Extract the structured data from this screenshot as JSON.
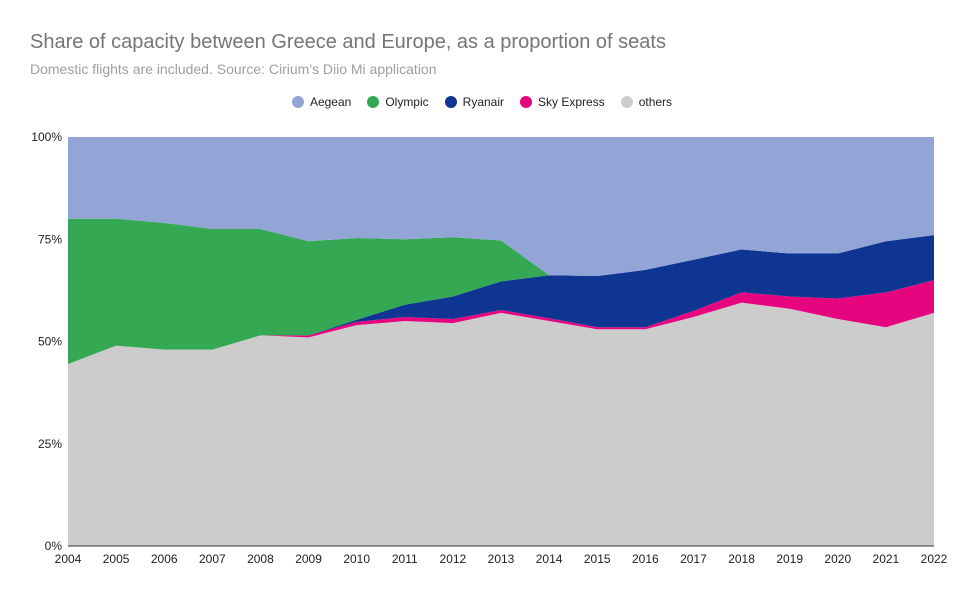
{
  "chart_data": {
    "type": "area",
    "stacked": "percent",
    "title": "Share of capacity between Greece and Europe, as a proportion of seats",
    "subtitle": "Domestic flights are included. Source: Cirium's Diio Mi application",
    "xlabel": "",
    "ylabel": "",
    "ylim": [
      0,
      100
    ],
    "yticks": [
      "0%",
      "25%",
      "50%",
      "75%",
      "100%"
    ],
    "legend_position": "top",
    "grid": false,
    "x": [
      "2004",
      "2005",
      "2006",
      "2007",
      "2008",
      "2009",
      "2010",
      "2011",
      "2012",
      "2013",
      "2014",
      "2015",
      "2016",
      "2017",
      "2018",
      "2019",
      "2020",
      "2021",
      "2022"
    ],
    "series": [
      {
        "name": "others",
        "color": "#cccccc",
        "values": [
          44.5,
          49,
          48,
          48,
          51.5,
          51,
          54,
          55,
          54.5,
          57,
          55,
          53,
          53,
          56,
          59.5,
          58,
          55.5,
          53.5,
          57
        ]
      },
      {
        "name": "Sky Express",
        "color": "#e7047f",
        "values": [
          0,
          0,
          0,
          0,
          0,
          0.5,
          0.8,
          1,
          1,
          0.7,
          0.7,
          0.5,
          0.5,
          1.5,
          2.5,
          3,
          5,
          8.5,
          8
        ]
      },
      {
        "name": "Ryanair",
        "color": "#0d3591",
        "values": [
          0,
          0,
          0,
          0,
          0,
          0,
          0.5,
          3,
          5.5,
          7,
          10.5,
          12.5,
          14,
          12.5,
          10.5,
          10.5,
          11,
          12.5,
          11
        ]
      },
      {
        "name": "Olympic",
        "color": "#34a853",
        "values": [
          35.5,
          31,
          31,
          29.5,
          26,
          23,
          20,
          16,
          14.5,
          10,
          0,
          0,
          0,
          0,
          0,
          0,
          0,
          0,
          0
        ]
      },
      {
        "name": "Aegean",
        "color": "#93a5d6",
        "values": [
          20,
          20,
          21,
          22.5,
          22.5,
          25.5,
          24.7,
          25,
          24.5,
          25.3,
          33.8,
          34,
          32.5,
          30,
          27.5,
          28.5,
          28.5,
          25.5,
          24
        ]
      }
    ],
    "legend_order": [
      "Aegean",
      "Olympic",
      "Ryanair",
      "Sky Express",
      "others"
    ]
  }
}
